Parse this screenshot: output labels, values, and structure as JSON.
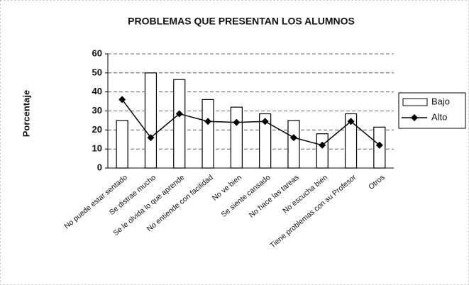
{
  "chart_data": {
    "type": "bar",
    "title": "PROBLEMAS QUE PRESENTAN LOS ALUMNOS",
    "y_label": "Porcentaje",
    "categories": [
      "No puede estar sentado",
      "Se distrae mucho",
      "Se le olvida lo que aprende",
      "No entiende con facilidad",
      "No ve bien",
      "Se siente cansado",
      "No hace las tareas",
      "No escucha bien",
      "Tiene problemas con su Profesor",
      "Otros"
    ],
    "series": [
      {
        "name": "Bajo",
        "type": "bar",
        "color": "#ffffff",
        "values": [
          25,
          50,
          46.5,
          36,
          32,
          28.5,
          25,
          18,
          28.5,
          21.5
        ]
      },
      {
        "name": "Alto",
        "type": "line",
        "color": "#000000",
        "values": [
          36,
          16,
          28.5,
          24.5,
          24,
          24.5,
          16,
          12,
          24.5,
          12
        ]
      }
    ],
    "ylim": [
      0,
      60
    ],
    "yticks": [
      0,
      10,
      20,
      30,
      40,
      50,
      60
    ],
    "grid": true,
    "legend": "right"
  }
}
